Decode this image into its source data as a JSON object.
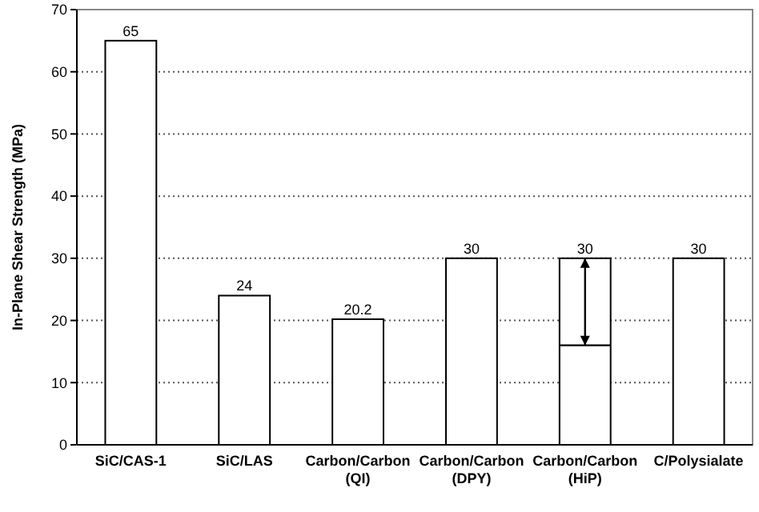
{
  "chart_data": {
    "type": "bar",
    "ylabel": "In-Plane Shear Strength (MPa)",
    "categories": [
      "SiC/CAS-1",
      "SiC/LAS",
      "Carbon/Carbon (QI)",
      "Carbon/Carbon (DPY)",
      "Carbon/Carbon (HiP)",
      "C/Polysialate"
    ],
    "values": [
      65,
      24,
      20.2,
      30,
      30,
      30
    ],
    "errors": [
      null,
      null,
      null,
      null,
      [
        16,
        30
      ],
      null
    ],
    "color": "#ffffff",
    "ylim": [
      0,
      70
    ],
    "yticks": [
      0,
      10,
      20,
      30,
      40,
      50,
      60,
      70
    ],
    "grid": "y",
    "data_labels": true
  }
}
